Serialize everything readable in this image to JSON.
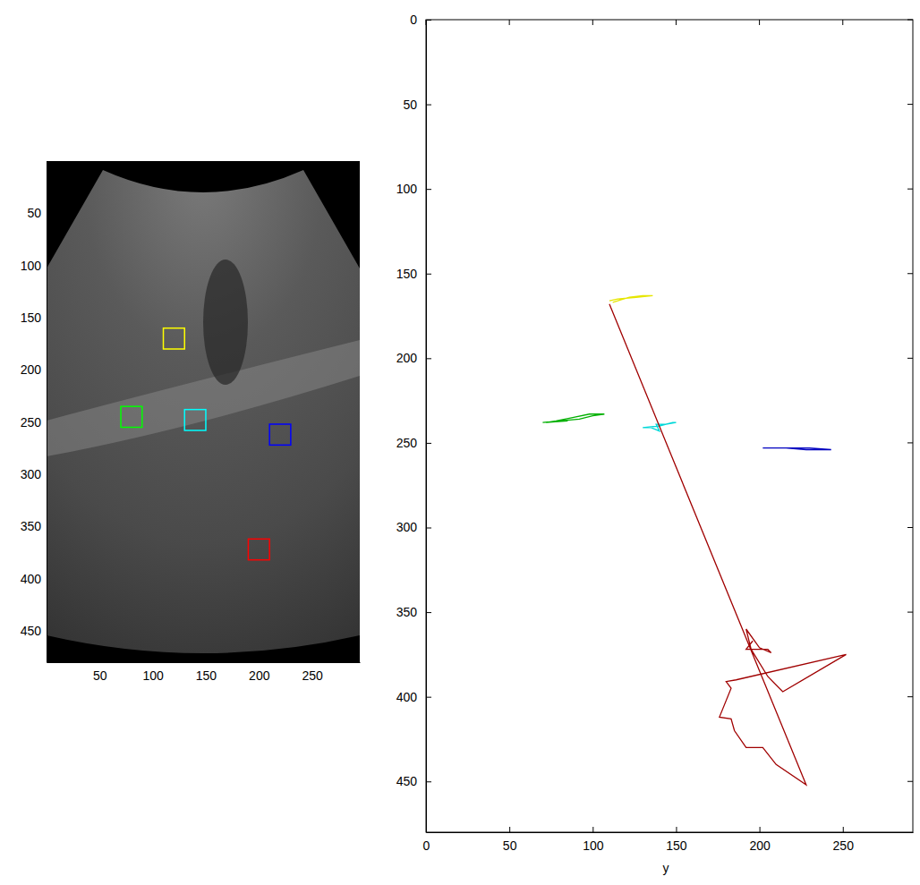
{
  "chart_data": [
    {
      "type": "image",
      "xlim": [
        0,
        295
      ],
      "ylim": [
        480,
        0
      ],
      "xticks": [
        50,
        100,
        150,
        200,
        250
      ],
      "yticks": [
        50,
        100,
        150,
        200,
        250,
        300,
        350,
        400,
        450
      ],
      "box_size": 20,
      "boxes": [
        {
          "color": "#ffff00",
          "x": 120,
          "y": 170
        },
        {
          "color": "#00ff00",
          "x": 80,
          "y": 245
        },
        {
          "color": "#00ffff",
          "x": 140,
          "y": 248
        },
        {
          "color": "#0000ff",
          "x": 220,
          "y": 262
        },
        {
          "color": "#ff0000",
          "x": 200,
          "y": 372
        }
      ]
    },
    {
      "type": "line",
      "x_label": "y",
      "xlim": [
        0,
        292
      ],
      "ylim": [
        480,
        0
      ],
      "xticks": [
        0,
        50,
        100,
        150,
        200,
        250
      ],
      "yticks": [
        0,
        50,
        100,
        150,
        200,
        250,
        300,
        350,
        400,
        450
      ],
      "series": [
        {
          "color": "#e6e600",
          "x": [
            112,
            122,
            130,
            136,
            126,
            115,
            110
          ],
          "values": [
            167,
            164,
            163,
            163,
            164,
            165,
            166
          ]
        },
        {
          "color": "#00b000",
          "x": [
            70,
            80,
            92,
            100,
            107,
            98,
            88,
            78,
            72,
            85
          ],
          "values": [
            238,
            237,
            236,
            234,
            233,
            233,
            235,
            237,
            238,
            237
          ]
        },
        {
          "color": "#00d8d8",
          "x": [
            130,
            140,
            148,
            150,
            144,
            138,
            140,
            135,
            130
          ],
          "values": [
            241,
            240,
            238,
            238,
            239,
            239,
            243,
            241,
            241
          ]
        },
        {
          "color": "#0000c0",
          "x": [
            202,
            212,
            218,
            230,
            243,
            228,
            216,
            205
          ],
          "values": [
            253,
            253,
            253,
            253,
            254,
            254,
            253,
            253
          ]
        },
        {
          "color": "#a00000",
          "x": [
            110,
            228,
            210,
            202,
            192,
            185,
            183,
            176,
            183,
            180,
            186,
            252,
            214,
            205,
            195,
            192,
            200,
            207,
            205,
            192,
            196
          ],
          "values": [
            168,
            452,
            440,
            430,
            430,
            420,
            413,
            412,
            395,
            391,
            390,
            375,
            397,
            388,
            372,
            360,
            371,
            374,
            372,
            372,
            367
          ]
        }
      ]
    }
  ]
}
